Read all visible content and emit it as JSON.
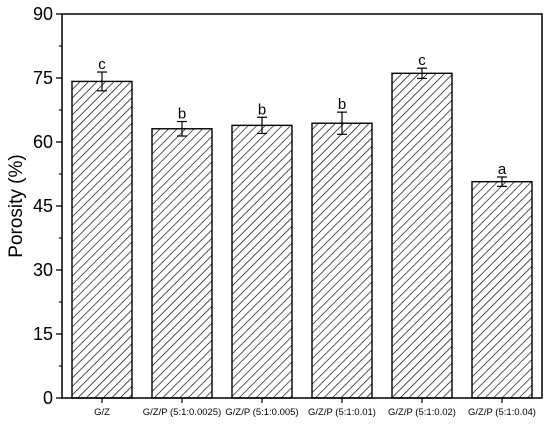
{
  "chart_data": {
    "type": "bar",
    "categories": [
      "G/Z",
      "G/Z/P (5:1:0.0025)",
      "G/Z/P (5:1:0.005)",
      "G/Z/P (5:1:0.01)",
      "G/Z/P (5:1:0.02)",
      "G/Z/P (5:1:0.04)"
    ],
    "values": [
      74.2,
      63.1,
      63.9,
      64.4,
      76.1,
      50.7
    ],
    "errors": [
      2.2,
      1.7,
      1.9,
      2.6,
      1.2,
      1.1
    ],
    "significance": [
      "c",
      "b",
      "b",
      "b",
      "c",
      "a"
    ],
    "ylabel": "Porosity (%)",
    "xlabel": "",
    "title": "",
    "ylim": [
      0,
      90
    ],
    "yticks": [
      "0",
      "15",
      "30",
      "45",
      "60",
      "75",
      "90"
    ],
    "grid": false,
    "bar_fill": "hatched",
    "colors": {
      "bar_stroke": "#000000",
      "hatch": "#000000",
      "background": "#ffffff"
    }
  }
}
